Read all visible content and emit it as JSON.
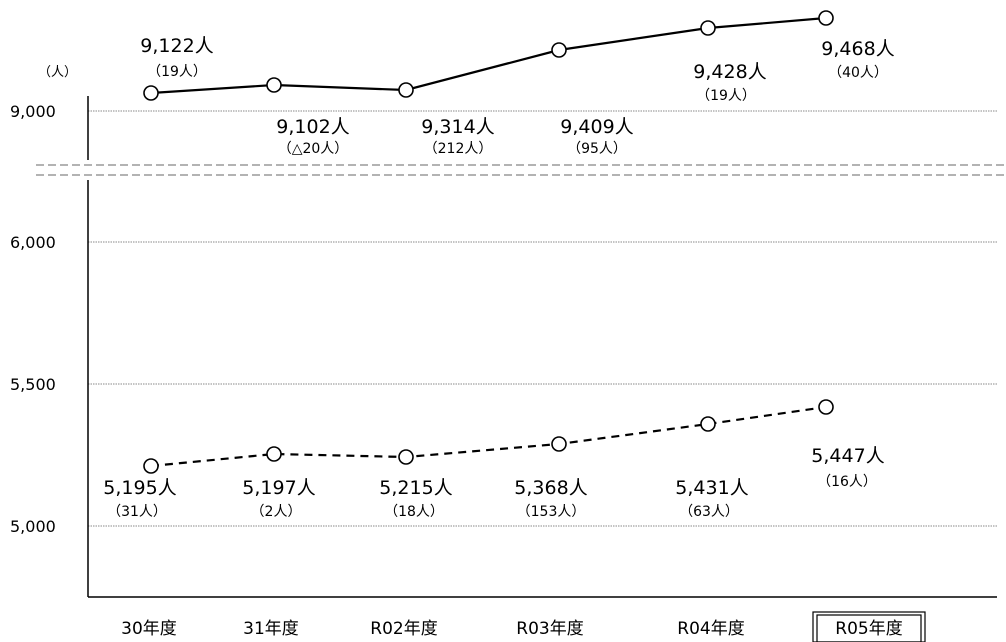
{
  "chart_data": {
    "type": "line",
    "y_unit": "（人）",
    "categories": [
      "30年度",
      "31年度",
      "R02年度",
      "R03年度",
      "R04年度",
      "R05年度"
    ],
    "highlighted_category": "R05年度",
    "y_axis_broken": true,
    "upper_segment": {
      "ylim": [
        8800,
        9520
      ],
      "ticks": [
        {
          "value": 9000,
          "label": "9,000"
        }
      ]
    },
    "lower_segment": {
      "ylim": [
        4780,
        6280
      ],
      "ticks": [
        {
          "value": 5000,
          "label": "5,000"
        },
        {
          "value": 5500,
          "label": "5,500"
        },
        {
          "value": 6000,
          "label": "6,000"
        }
      ]
    },
    "grid": true,
    "series": [
      {
        "style": "solid",
        "color": "#000000",
        "values": [
          9122,
          9102,
          9314,
          9409,
          9428,
          9468
        ],
        "value_labels": [
          "9,122人",
          "9,102人",
          "9,314人",
          "9,409人",
          "9,428人",
          "9,468人"
        ],
        "change_labels": [
          "（19人）",
          "（△20人）",
          "（212人）",
          "（95人）",
          "（19人）",
          "（40人）"
        ]
      },
      {
        "style": "dashed",
        "color": "#000000",
        "values": [
          5195,
          5197,
          5215,
          5368,
          5431,
          5447
        ],
        "value_labels": [
          "5,195人",
          "5,197人",
          "5,215人",
          "5,368人",
          "5,431人",
          "5,447人"
        ],
        "change_labels": [
          "（31人）",
          "（2人）",
          "（18人）",
          "（153人）",
          "（63人）",
          "（16人）"
        ]
      }
    ]
  }
}
